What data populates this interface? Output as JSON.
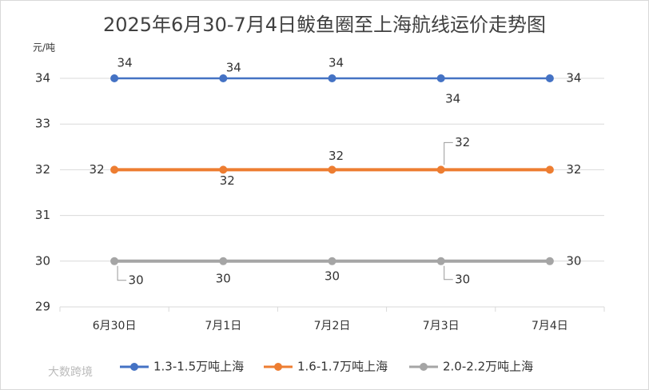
{
  "chart_data": {
    "type": "line",
    "title": "2025年6月30-7月4日鲅鱼圈至上海航线运价走势图",
    "y_label": "元/吨",
    "categories": [
      "6月30日",
      "7月1日",
      "7月2日",
      "7月3日",
      "7月4日"
    ],
    "series": [
      {
        "name": "1.3-1.5万吨上海",
        "color": "#4472c4",
        "values": [
          34,
          34,
          34,
          34,
          34
        ]
      },
      {
        "name": "1.6-1.7万吨上海",
        "color": "#ed7d31",
        "values": [
          32,
          32,
          32,
          32,
          32
        ]
      },
      {
        "name": "2.0-2.2万吨上海",
        "color": "#a5a5a5",
        "values": [
          30,
          30,
          30,
          30,
          30
        ]
      }
    ],
    "ylim": [
      29,
      34
    ],
    "yticks": [
      29,
      30,
      31,
      32,
      33,
      34
    ],
    "grid": true,
    "legend": "bottom",
    "watermark": "大数跨境"
  }
}
